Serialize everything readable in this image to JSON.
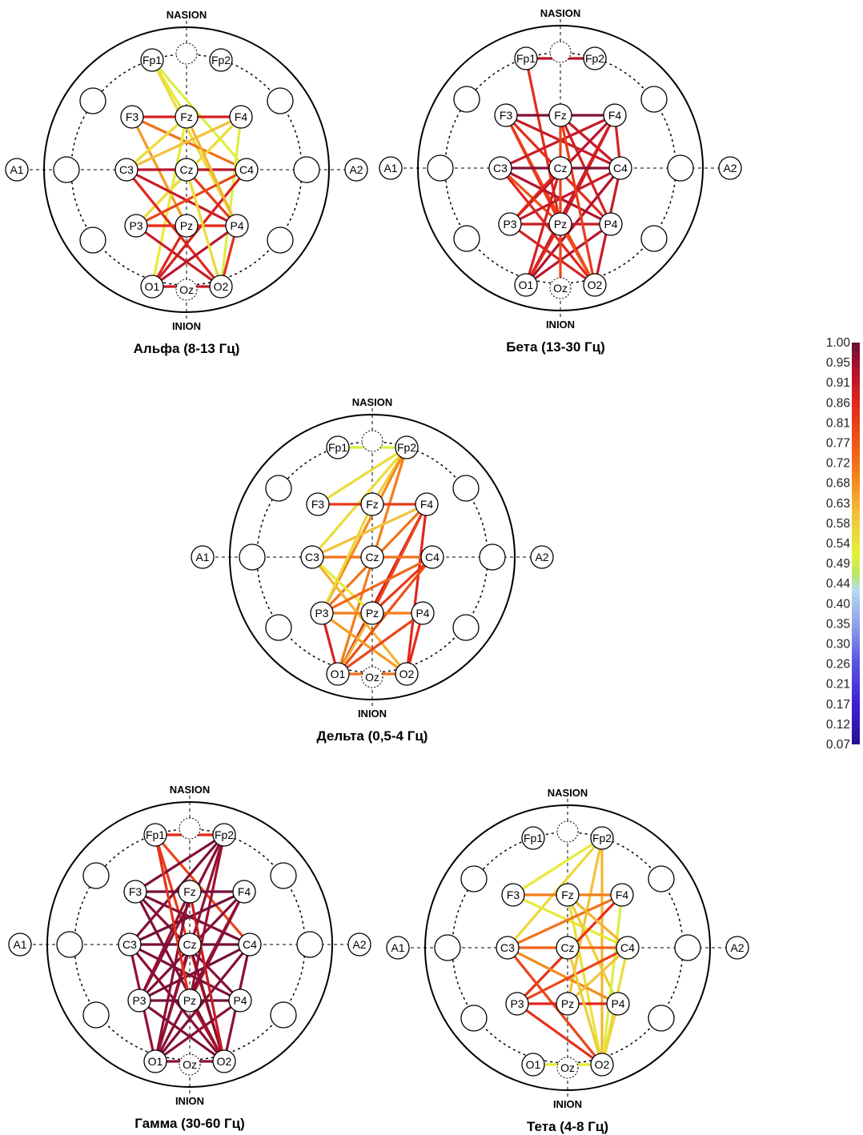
{
  "landmarks": {
    "top": "NASION",
    "bottom": "INION"
  },
  "electrodes": [
    {
      "id": "Fp1",
      "label": "Fp1"
    },
    {
      "id": "Fp2",
      "label": "Fp2"
    },
    {
      "id": "F3",
      "label": "F3"
    },
    {
      "id": "Fz",
      "label": "Fz"
    },
    {
      "id": "F4",
      "label": "F4"
    },
    {
      "id": "A1",
      "label": "A1"
    },
    {
      "id": "C3",
      "label": "C3"
    },
    {
      "id": "Cz",
      "label": "Cz"
    },
    {
      "id": "C4",
      "label": "C4"
    },
    {
      "id": "A2",
      "label": "A2"
    },
    {
      "id": "P3",
      "label": "P3"
    },
    {
      "id": "Pz",
      "label": "Pz"
    },
    {
      "id": "P4",
      "label": "P4"
    },
    {
      "id": "O1",
      "label": "O1"
    },
    {
      "id": "Oz",
      "label": "Oz"
    },
    {
      "id": "O2",
      "label": "O2"
    }
  ],
  "panels": [
    {
      "id": "alpha",
      "caption": "Альфа (8-13 Гц)",
      "connections": [
        [
          "Fp1",
          "Fz",
          0.52
        ],
        [
          "Fp1",
          "C4",
          0.5
        ],
        [
          "Fp1",
          "P4",
          0.55
        ],
        [
          "F3",
          "F4",
          0.88
        ],
        [
          "F3",
          "C4",
          0.72
        ],
        [
          "F3",
          "Pz",
          0.66
        ],
        [
          "Fz",
          "C3",
          0.55
        ],
        [
          "Fz",
          "O1",
          0.52
        ],
        [
          "F4",
          "C3",
          0.6
        ],
        [
          "F4",
          "P3",
          0.55
        ],
        [
          "F4",
          "O2",
          0.5
        ],
        [
          "C3",
          "C4",
          0.92
        ],
        [
          "C3",
          "P4",
          0.9
        ],
        [
          "C3",
          "O2",
          0.86
        ],
        [
          "Cz",
          "P4",
          0.82
        ],
        [
          "C4",
          "O1",
          0.88
        ],
        [
          "C4",
          "P3",
          0.8
        ],
        [
          "P3",
          "P4",
          0.86
        ],
        [
          "P3",
          "O2",
          0.9
        ],
        [
          "P3",
          "Pz",
          0.84
        ],
        [
          "P4",
          "O1",
          0.92
        ],
        [
          "P4",
          "O2",
          0.84
        ],
        [
          "Pz",
          "O1",
          0.86
        ],
        [
          "O1",
          "O2",
          0.9
        ],
        [
          "Cz",
          "O2",
          0.55
        ],
        [
          "Fz",
          "P4",
          0.62
        ]
      ]
    },
    {
      "id": "beta",
      "caption": "Бета   (13-30 Гц)",
      "connections": [
        [
          "Fp1",
          "Fp2",
          0.92
        ],
        [
          "Fp1",
          "Pz",
          0.85
        ],
        [
          "F3",
          "F4",
          0.98
        ],
        [
          "F3",
          "C4",
          0.9
        ],
        [
          "F3",
          "P4",
          0.85
        ],
        [
          "F3",
          "O2",
          0.8
        ],
        [
          "F3",
          "Pz",
          0.82
        ],
        [
          "Fz",
          "C4",
          0.9
        ],
        [
          "Fz",
          "P4",
          0.88
        ],
        [
          "F4",
          "C3",
          0.9
        ],
        [
          "F4",
          "P3",
          0.92
        ],
        [
          "F4",
          "O1",
          0.9
        ],
        [
          "F4",
          "Pz",
          0.88
        ],
        [
          "C3",
          "C4",
          0.98
        ],
        [
          "C3",
          "P4",
          0.93
        ],
        [
          "C3",
          "O2",
          0.86
        ],
        [
          "C3",
          "Pz",
          0.78
        ],
        [
          "Cz",
          "O1",
          0.88
        ],
        [
          "Cz",
          "P3",
          0.86
        ],
        [
          "C4",
          "P3",
          0.9
        ],
        [
          "C4",
          "O1",
          0.93
        ],
        [
          "C4",
          "O2",
          0.9
        ],
        [
          "P3",
          "P4",
          0.9
        ],
        [
          "P3",
          "O2",
          0.88
        ],
        [
          "P4",
          "O1",
          0.92
        ],
        [
          "Pz",
          "O2",
          0.78
        ],
        [
          "O1",
          "Pz",
          0.86
        ],
        [
          "Fz",
          "O2",
          0.82
        ],
        [
          "Fz",
          "Oz",
          0.8
        ],
        [
          "C4",
          "F4",
          0.88
        ]
      ]
    },
    {
      "id": "delta",
      "caption": "Дельта (0,5-4 Гц)",
      "connections": [
        [
          "Fp1",
          "Fp2",
          0.5
        ],
        [
          "Fp2",
          "F3",
          0.55
        ],
        [
          "Fp2",
          "C3",
          0.55
        ],
        [
          "Fp2",
          "Fz",
          0.58
        ],
        [
          "Fp2",
          "P3",
          0.68
        ],
        [
          "Fp2",
          "O1",
          0.7
        ],
        [
          "F3",
          "F4",
          0.82
        ],
        [
          "F4",
          "C3",
          0.6
        ],
        [
          "F4",
          "P3",
          0.72
        ],
        [
          "F4",
          "O1",
          0.88
        ],
        [
          "F4",
          "O2",
          0.86
        ],
        [
          "F4",
          "Pz",
          0.8
        ],
        [
          "C3",
          "C4",
          0.72
        ],
        [
          "C3",
          "Pz",
          0.52
        ],
        [
          "C3",
          "O2",
          0.62
        ],
        [
          "C4",
          "O1",
          0.78
        ],
        [
          "C4",
          "P3",
          0.74
        ],
        [
          "C4",
          "Pz",
          0.82
        ],
        [
          "P3",
          "P4",
          0.7
        ],
        [
          "P3",
          "O2",
          0.66
        ],
        [
          "P4",
          "O1",
          0.8
        ],
        [
          "P4",
          "O2",
          0.85
        ],
        [
          "P3",
          "O1",
          0.88
        ],
        [
          "O1",
          "O2",
          0.72
        ],
        [
          "Pz",
          "O1",
          0.62
        ],
        [
          "Fz",
          "P3",
          0.56
        ]
      ]
    },
    {
      "id": "gamma",
      "caption": "Гамма (30-60 Гц)",
      "connections": [
        [
          "Fp1",
          "Fp2",
          0.86
        ],
        [
          "Fp1",
          "O2",
          0.82
        ],
        [
          "Fp1",
          "C4",
          0.8
        ],
        [
          "Fp2",
          "F3",
          0.98
        ],
        [
          "Fp2",
          "C3",
          0.98
        ],
        [
          "Fp2",
          "P3",
          0.97
        ],
        [
          "Fp2",
          "O1",
          0.96
        ],
        [
          "Fp2",
          "Pz",
          0.95
        ],
        [
          "F3",
          "F4",
          0.99
        ],
        [
          "F3",
          "C4",
          0.98
        ],
        [
          "F3",
          "P4",
          0.97
        ],
        [
          "F3",
          "O2",
          0.98
        ],
        [
          "Fz",
          "O1",
          0.97
        ],
        [
          "Fz",
          "P3",
          0.96
        ],
        [
          "F4",
          "C3",
          0.99
        ],
        [
          "F4",
          "P3",
          0.98
        ],
        [
          "F4",
          "O1",
          0.97
        ],
        [
          "F4",
          "Pz",
          0.96
        ],
        [
          "C3",
          "C4",
          0.99
        ],
        [
          "C3",
          "P4",
          0.98
        ],
        [
          "C3",
          "O2",
          0.97
        ],
        [
          "Cz",
          "O1",
          0.96
        ],
        [
          "Cz",
          "O2",
          0.97
        ],
        [
          "C4",
          "P3",
          0.99
        ],
        [
          "C4",
          "O1",
          0.98
        ],
        [
          "C4",
          "O2",
          0.97
        ],
        [
          "P3",
          "P4",
          0.99
        ],
        [
          "P3",
          "O2",
          0.98
        ],
        [
          "P4",
          "O1",
          0.97
        ],
        [
          "Pz",
          "O2",
          0.94
        ],
        [
          "O1",
          "O2",
          0.97
        ],
        [
          "Fp1",
          "Pz",
          0.84
        ],
        [
          "Fz",
          "O2",
          0.9
        ],
        [
          "C3",
          "O1",
          0.96
        ]
      ]
    },
    {
      "id": "theta",
      "caption": "Тета (4-8 Гц)",
      "connections": [
        [
          "Fp2",
          "F3",
          0.52
        ],
        [
          "Fp2",
          "C3",
          0.56
        ],
        [
          "Fp2",
          "Pz",
          0.6
        ],
        [
          "Fp2",
          "O2",
          0.62
        ],
        [
          "F3",
          "F4",
          0.7
        ],
        [
          "F3",
          "C4",
          0.52
        ],
        [
          "Fz",
          "O2",
          0.54
        ],
        [
          "Fz",
          "P4",
          0.58
        ],
        [
          "F4",
          "C3",
          0.72
        ],
        [
          "F4",
          "P3",
          0.84
        ],
        [
          "F4",
          "O2",
          0.5
        ],
        [
          "C3",
          "C4",
          0.75
        ],
        [
          "C3",
          "P4",
          0.68
        ],
        [
          "C3",
          "O2",
          0.8
        ],
        [
          "C4",
          "O2",
          0.55
        ],
        [
          "C4",
          "Pz",
          0.6
        ],
        [
          "C4",
          "P3",
          0.8
        ],
        [
          "P3",
          "P4",
          0.86
        ],
        [
          "P3",
          "O2",
          0.84
        ],
        [
          "Cz",
          "O2",
          0.58
        ],
        [
          "O1",
          "O2",
          0.52
        ],
        [
          "P4",
          "O2",
          0.56
        ],
        [
          "Fz",
          "C4",
          0.62
        ]
      ]
    }
  ],
  "colorbar": {
    "ticks": [
      "1.00",
      "0.95",
      "0.91",
      "0.86",
      "0.81",
      "0.77",
      "0.72",
      "0.68",
      "0.63",
      "0.58",
      "0.54",
      "0.49",
      "0.44",
      "0.40",
      "0.35",
      "0.30",
      "0.26",
      "0.21",
      "0.17",
      "0.12",
      "0.07"
    ],
    "range": [
      0.07,
      1.0
    ],
    "stops": [
      {
        "value": 1.0,
        "color": "#6b0f3a"
      },
      {
        "value": 0.93,
        "color": "#b3122d"
      },
      {
        "value": 0.86,
        "color": "#e3261c"
      },
      {
        "value": 0.76,
        "color": "#ef5a17"
      },
      {
        "value": 0.68,
        "color": "#f38a1c"
      },
      {
        "value": 0.6,
        "color": "#f2c23a"
      },
      {
        "value": 0.51,
        "color": "#e6f038"
      },
      {
        "value": 0.46,
        "color": "#b5e86a"
      },
      {
        "value": 0.43,
        "color": "#b9dcef"
      },
      {
        "value": 0.35,
        "color": "#8fa3e8"
      },
      {
        "value": 0.26,
        "color": "#5a55e0"
      },
      {
        "value": 0.16,
        "color": "#3e1fd2"
      },
      {
        "value": 0.07,
        "color": "#24128a"
      }
    ]
  }
}
